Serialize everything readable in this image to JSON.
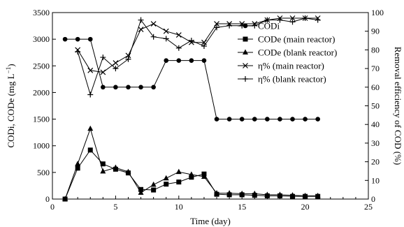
{
  "chart_data": {
    "type": "line",
    "xlabel": "Time (day)",
    "ylabel_left_parts": {
      "main": "CODi, CODe (mg L",
      "sup": "−1",
      "close": ")"
    },
    "ylabel_right": "Removal efficiency of COD (%)",
    "xlim": [
      0,
      25
    ],
    "ylim_left": [
      0,
      3500
    ],
    "ylim_right": [
      0,
      100
    ],
    "x_ticks": [
      0,
      5,
      10,
      15,
      20,
      25
    ],
    "y_left_ticks": [
      0,
      500,
      1000,
      1500,
      2000,
      2500,
      3000,
      3500
    ],
    "y_right_ticks": [
      0,
      10,
      20,
      30,
      40,
      50,
      60,
      70,
      80,
      90,
      100
    ],
    "legend_position": "upper-right",
    "series": [
      {
        "name": "CODi",
        "axis": "left",
        "marker": "circle",
        "x": [
          1,
          2,
          3,
          4,
          5,
          6,
          7,
          8,
          9,
          10,
          11,
          12,
          13,
          14,
          15,
          16,
          17,
          18,
          19,
          20,
          21
        ],
        "y": [
          3000,
          3000,
          3000,
          2100,
          2100,
          2100,
          2100,
          2100,
          2600,
          2600,
          2600,
          2600,
          1500,
          1500,
          1500,
          1500,
          1500,
          1500,
          1500,
          1500,
          1500
        ]
      },
      {
        "name": "CODe (main reactor)",
        "axis": "left",
        "marker": "square",
        "x": [
          1,
          2,
          3,
          4,
          5,
          6,
          7,
          8,
          9,
          10,
          11,
          12,
          13,
          14,
          15,
          16,
          17,
          18,
          19,
          20,
          21
        ],
        "y": [
          0,
          580,
          920,
          660,
          560,
          490,
          180,
          170,
          280,
          320,
          410,
          470,
          90,
          80,
          80,
          70,
          60,
          60,
          50,
          50,
          50
        ]
      },
      {
        "name": "CODe (blank reactor)",
        "axis": "left",
        "marker": "triangle",
        "x": [
          1,
          2,
          3,
          4,
          5,
          6,
          7,
          8,
          9,
          10,
          11,
          12,
          13,
          14,
          15,
          16,
          17,
          18,
          19,
          20,
          21
        ],
        "y": [
          0,
          660,
          1320,
          520,
          590,
          510,
          120,
          270,
          390,
          510,
          460,
          420,
          110,
          110,
          100,
          100,
          80,
          80,
          70,
          60,
          60
        ]
      },
      {
        "name": "η% (main reactor)",
        "axis": "right",
        "marker": "x",
        "x": [
          2,
          3,
          4,
          5,
          6,
          7,
          8,
          9,
          10,
          11,
          12,
          13,
          14,
          15,
          16,
          17,
          18,
          19,
          20,
          21
        ],
        "y": [
          80,
          69,
          68,
          73,
          77,
          91,
          94,
          90,
          88,
          84,
          84,
          94,
          94,
          94,
          94,
          96,
          97,
          97,
          97,
          97
        ]
      },
      {
        "name": "η% (blank reactor)",
        "axis": "right",
        "marker": "plus",
        "x": [
          2,
          3,
          4,
          5,
          6,
          7,
          8,
          9,
          10,
          11,
          12,
          13,
          14,
          15,
          16,
          17,
          18,
          19,
          20,
          21
        ],
        "y": [
          79,
          56,
          76,
          70,
          75,
          96,
          87,
          86,
          81,
          85,
          82,
          92,
          93,
          93,
          93,
          96,
          96,
          95,
          97,
          96
        ]
      }
    ]
  }
}
